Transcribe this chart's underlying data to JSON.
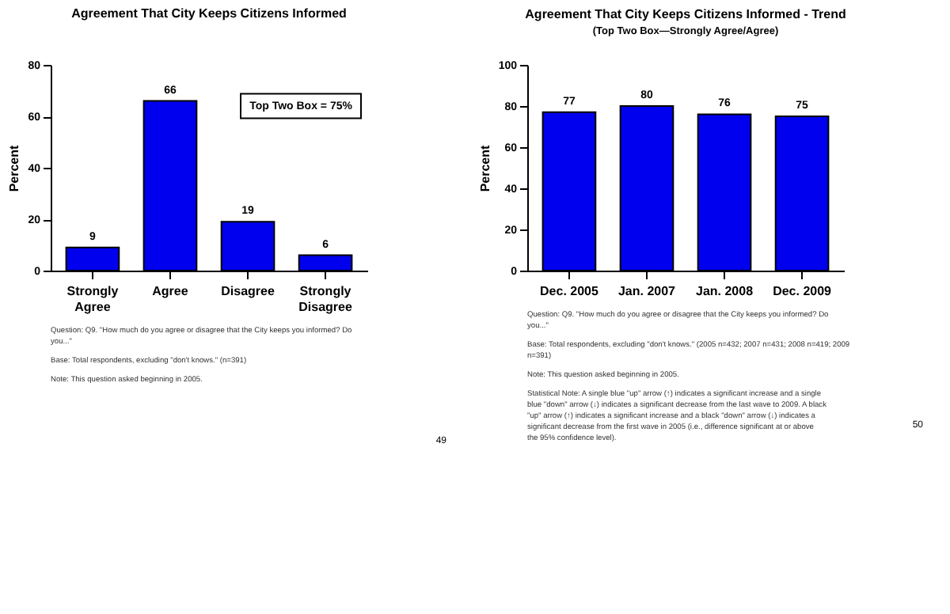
{
  "chart_data": [
    {
      "type": "bar",
      "title": "Agreement That City Keeps Citizens Informed",
      "ylabel": "Percent",
      "categories": [
        "Strongly Agree",
        "Agree",
        "Disagree",
        "Strongly Disagree"
      ],
      "values": [
        9,
        66,
        19,
        6
      ],
      "color": "#0000ee",
      "ylim": [
        0,
        80
      ],
      "yticks": [
        0,
        20,
        40,
        60,
        80
      ],
      "data_labels": true,
      "annotations": [
        "Top Two Box = 75%",
        "Question: Q9. \"How much do you agree or disagree that the City keeps you informed? Do you...\"",
        "Base: Total respondents, excluding \"don't knows.\" (n=391)",
        "Note: This question asked beginning in 2005.",
        "49"
      ]
    },
    {
      "type": "bar",
      "title": "Agreement That City Keeps Citizens Informed - Trend",
      "subtitle": "(Top Two Box—Strongly Agree/Agree)",
      "ylabel": "Percent",
      "categories": [
        "Dec. 2005",
        "Jan. 2007",
        "Jan. 2008",
        "Dec. 2009"
      ],
      "values": [
        77,
        80,
        76,
        75
      ],
      "color": "#0000ee",
      "ylim": [
        0,
        100
      ],
      "yticks": [
        0,
        20,
        40,
        60,
        80,
        100
      ],
      "data_labels": true,
      "annotations": [
        "Question: Q9. \"How much do you agree or disagree that the City keeps you informed? Do you...\"",
        "Base: Total respondents, excluding \"don't knows.\" (2005 n=432; 2007 n=431; 2008 n=419; 2009 n=391)",
        "Note: This question asked beginning in 2005.",
        "Statistical Note: A single blue \"up\" arrow (↑) indicates a significant increase and a single blue \"down\" arrow (↓) indicates a significant decrease from the last wave to 2009. A black \"up\" arrow (↑) indicates a significant increase and a black \"down\" arrow (↓) indicates a significant decrease from the first wave in 2005 (i.e., difference significant at or above the 95% confidence level).",
        "50"
      ]
    }
  ]
}
